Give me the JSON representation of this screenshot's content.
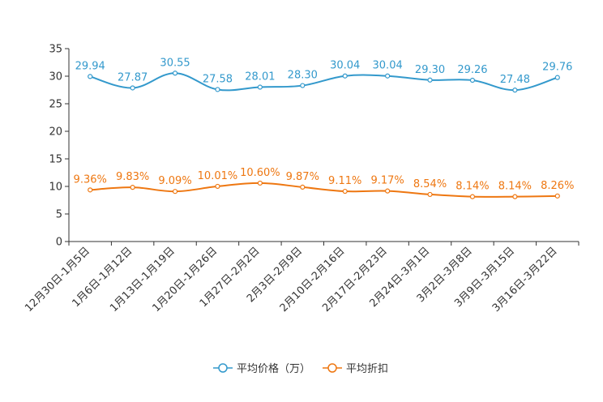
{
  "chart_data": {
    "type": "line",
    "categories": [
      "12月30日-1月5日",
      "1月6日-1月12日",
      "1月13日-1月19日",
      "1月20日-1月26日",
      "1月27日-2月2日",
      "2月3日-2月9日",
      "2月10日-2月16日",
      "2月17日-2月23日",
      "2月24日-3月1日",
      "3月2日-3月8日",
      "3月9日-3月15日",
      "3月16日-3月22日"
    ],
    "series": [
      {
        "name": "平均价格（万）",
        "color": "#3399cc",
        "values": [
          29.94,
          27.87,
          30.55,
          27.58,
          28.01,
          28.3,
          30.04,
          30.04,
          29.3,
          29.26,
          27.48,
          29.76
        ],
        "labels": [
          "29.94",
          "27.87",
          "30.55",
          "27.58",
          "28.01",
          "28.30",
          "30.04",
          "30.04",
          "29.30",
          "29.26",
          "27.48",
          "29.76"
        ]
      },
      {
        "name": "平均折扣",
        "color": "#ee7711",
        "values": [
          9.36,
          9.83,
          9.09,
          10.01,
          10.6,
          9.87,
          9.11,
          9.17,
          8.54,
          8.14,
          8.14,
          8.26
        ],
        "labels": [
          "9.36%",
          "9.83%",
          "9.09%",
          "10.01%",
          "10.60%",
          "9.87%",
          "9.11%",
          "9.17%",
          "8.54%",
          "8.14%",
          "8.14%",
          "8.26%"
        ]
      }
    ],
    "yticks": [
      "0",
      "5",
      "10",
      "15",
      "20",
      "25",
      "30",
      "35"
    ],
    "ylim": [
      0,
      35
    ],
    "title": "",
    "xlabel": "",
    "ylabel": "",
    "legend_position": "bottom-center"
  }
}
